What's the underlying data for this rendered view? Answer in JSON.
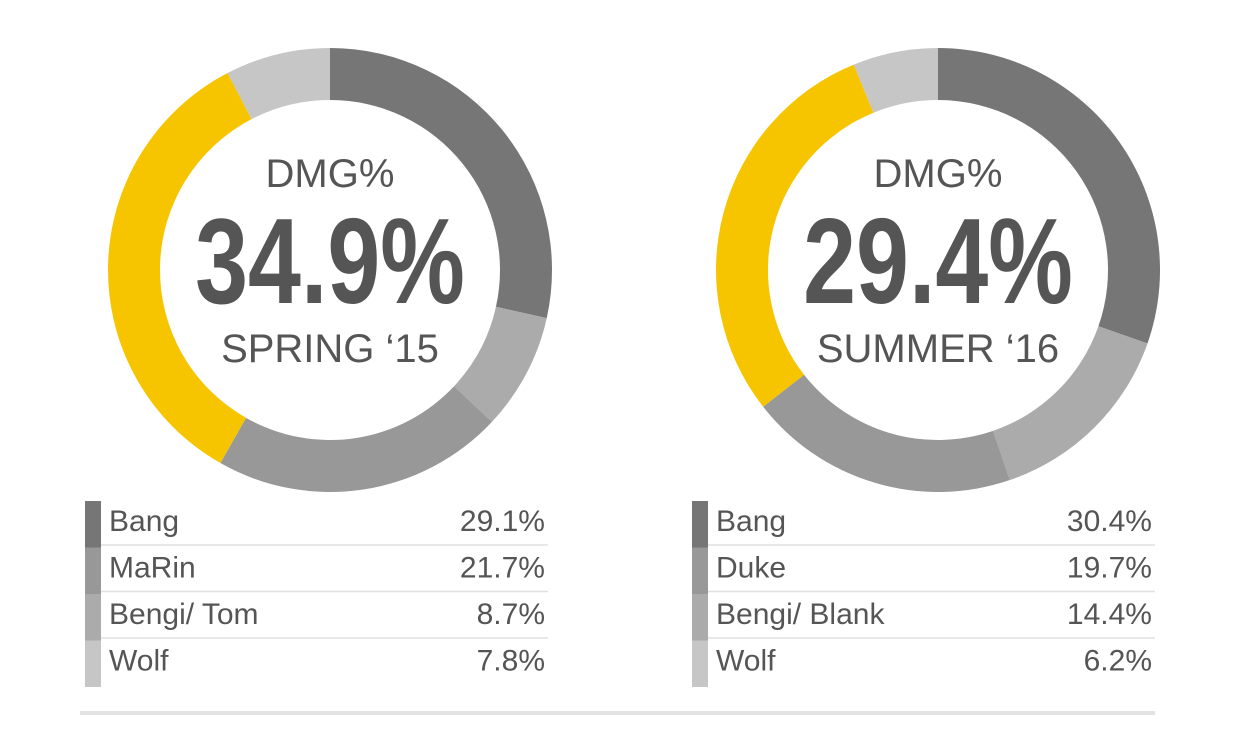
{
  "chart_data": [
    {
      "type": "pie",
      "title": "DMG%",
      "subtitle": "SPRING ‘15",
      "categories": [
        "Bang",
        "MaRin",
        "Bengi/ Tom",
        "Wolf",
        null
      ],
      "values": [
        29.1,
        21.7,
        8.7,
        7.8,
        34.9
      ],
      "value_labels": [
        "29.1%",
        "21.7%",
        "8.7%",
        "7.8%",
        "34.9%"
      ],
      "colors": [
        "#767676",
        "#989898",
        "#ababab",
        "#c6c6c6",
        "#f7c500"
      ]
    },
    {
      "type": "pie",
      "title": "DMG%",
      "subtitle": "SUMMER ‘16",
      "categories": [
        "Bang",
        "Duke",
        "Bengi/ Blank",
        "Wolf",
        null
      ],
      "values": [
        30.4,
        19.7,
        14.4,
        6.2,
        29.4
      ],
      "value_labels": [
        "30.4%",
        "19.7%",
        "14.4%",
        "6.2%",
        "29.4%"
      ],
      "colors": [
        "#767676",
        "#989898",
        "#ababab",
        "#c6c6c6",
        "#f7c500"
      ]
    }
  ]
}
